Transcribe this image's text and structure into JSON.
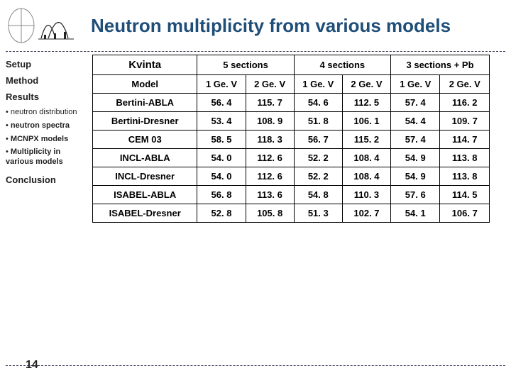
{
  "title": "Neutron multiplicity from various models",
  "page_number": "14",
  "sidebar": {
    "setup": "Setup",
    "method": "Method",
    "results": "Results",
    "bullets": [
      {
        "label": "neutron distribution",
        "bold": false
      },
      {
        "label": "neutron spectra",
        "bold": true
      },
      {
        "label": "MCNPX models",
        "bold": true
      },
      {
        "label": "Multiplicity in various models",
        "bold": true
      }
    ],
    "conclusion": "Conclusion"
  },
  "table": {
    "header_groups": [
      {
        "key": "Kvinta",
        "span": 1
      },
      {
        "key": "5 sections",
        "span": 2
      },
      {
        "key": "4 sections",
        "span": 2
      },
      {
        "key": "3 sections + Pb",
        "span": 2
      }
    ],
    "subheaders": [
      "Model",
      "1 Ge. V",
      "2 Ge. V",
      "1 Ge. V",
      "2 Ge. V",
      "1 Ge. V",
      "2 Ge. V"
    ],
    "rows": [
      [
        "Bertini-ABLA",
        "56. 4",
        "115. 7",
        "54. 6",
        "112. 5",
        "57. 4",
        "116. 2"
      ],
      [
        "Bertini-Dresner",
        "53. 4",
        "108. 9",
        "51. 8",
        "106. 1",
        "54. 4",
        "109. 7"
      ],
      [
        "CEM 03",
        "58. 5",
        "118. 3",
        "56. 7",
        "115. 2",
        "57. 4",
        "114. 7"
      ],
      [
        "INCL-ABLA",
        "54. 0",
        "112. 6",
        "52. 2",
        "108. 4",
        "54. 9",
        "113. 8"
      ],
      [
        "INCL-Dresner",
        "54. 0",
        "112. 6",
        "52. 2",
        "108. 4",
        "54. 9",
        "113. 8"
      ],
      [
        "ISABEL-ABLA",
        "56. 8",
        "113. 6",
        "54. 8",
        "110. 3",
        "57. 6",
        "114. 5"
      ],
      [
        "ISABEL-Dresner",
        "52. 8",
        "105. 8",
        "51. 3",
        "102. 7",
        "54. 1",
        "106. 7"
      ]
    ]
  },
  "colors": {
    "title": "#1f4e79",
    "dash": "#333355",
    "border": "#000000"
  }
}
